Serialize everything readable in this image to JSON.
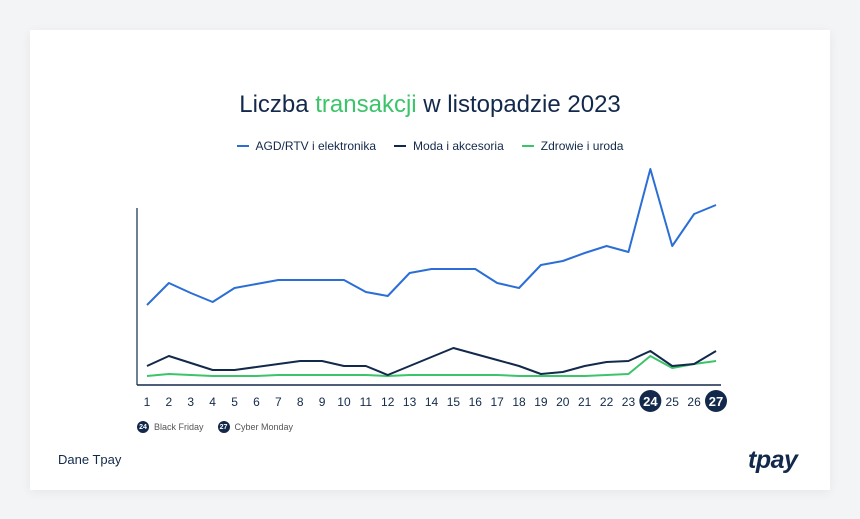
{
  "title_pre": "Liczba ",
  "title_hl": "transakcji",
  "title_post": " w listopadzie 2023",
  "footer": "Dane Tpay",
  "logo": "tpay",
  "colors": {
    "blue": "#2b6fd6",
    "dark": "#13294b",
    "green": "#3cc46a"
  },
  "notes": [
    {
      "day": "24",
      "label": "Black Friday"
    },
    {
      "day": "27",
      "label": "Cyber Monday"
    }
  ],
  "chart_data": {
    "type": "line",
    "title": "Liczba transakcji w listopadzie 2023",
    "xlabel": "",
    "ylabel": "",
    "x": [
      1,
      2,
      3,
      4,
      5,
      6,
      7,
      8,
      9,
      10,
      11,
      12,
      13,
      14,
      15,
      16,
      17,
      18,
      19,
      20,
      21,
      22,
      23,
      24,
      25,
      26,
      27
    ],
    "highlighted_x": [
      24,
      27
    ],
    "ylim": [
      0,
      180
    ],
    "y_units": "relative index (no axis values shown)",
    "legend_position": "top-center",
    "series": [
      {
        "name": "AGD/RTV i elektronika",
        "color": "#2b6fd6",
        "values": [
          80,
          102,
          92,
          83,
          97,
          101,
          105,
          105,
          105,
          105,
          93,
          89,
          112,
          116,
          116,
          116,
          102,
          97,
          120,
          124,
          132,
          139,
          133,
          216,
          139,
          171,
          180
        ]
      },
      {
        "name": "Moda i akcesoria",
        "color": "#13294b",
        "values": [
          19,
          29,
          22,
          15,
          15,
          18,
          21,
          24,
          24,
          19,
          19,
          10,
          19,
          28,
          37,
          31,
          25,
          19,
          11,
          13,
          19,
          23,
          24,
          34,
          19,
          21,
          34
        ]
      },
      {
        "name": "Zdrowie i uroda",
        "color": "#3cc46a",
        "values": [
          9,
          11,
          10,
          9,
          9,
          9,
          10,
          10,
          10,
          10,
          10,
          9,
          10,
          10,
          10,
          10,
          10,
          9,
          9,
          9,
          9,
          10,
          11,
          29,
          17,
          21,
          24
        ]
      }
    ]
  }
}
